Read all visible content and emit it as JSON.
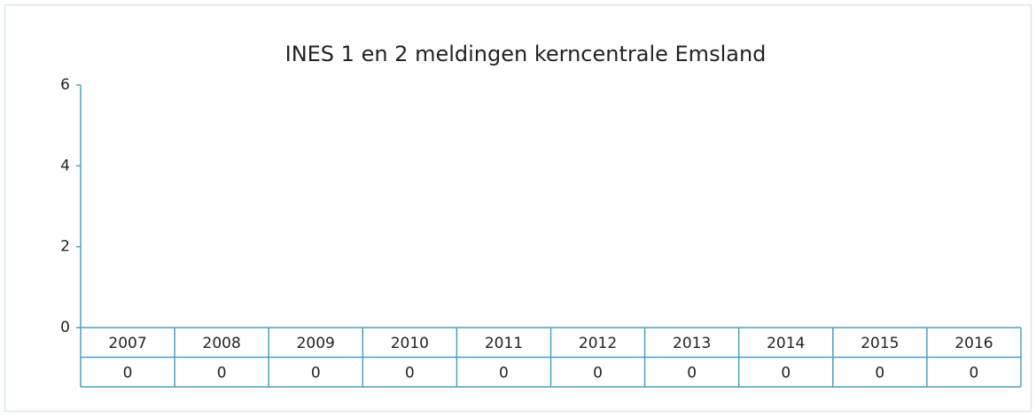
{
  "chart_data": {
    "type": "bar",
    "title": "INES 1 en 2 meldingen kerncentrale Emsland",
    "categories": [
      "2007",
      "2008",
      "2009",
      "2010",
      "2011",
      "2012",
      "2013",
      "2014",
      "2015",
      "2016"
    ],
    "values": [
      0,
      0,
      0,
      0,
      0,
      0,
      0,
      0,
      0,
      0
    ],
    "color": "#4a9fc0",
    "ylim": [
      0,
      6
    ],
    "yticks": [
      0,
      2,
      4,
      6
    ],
    "grid": false
  }
}
